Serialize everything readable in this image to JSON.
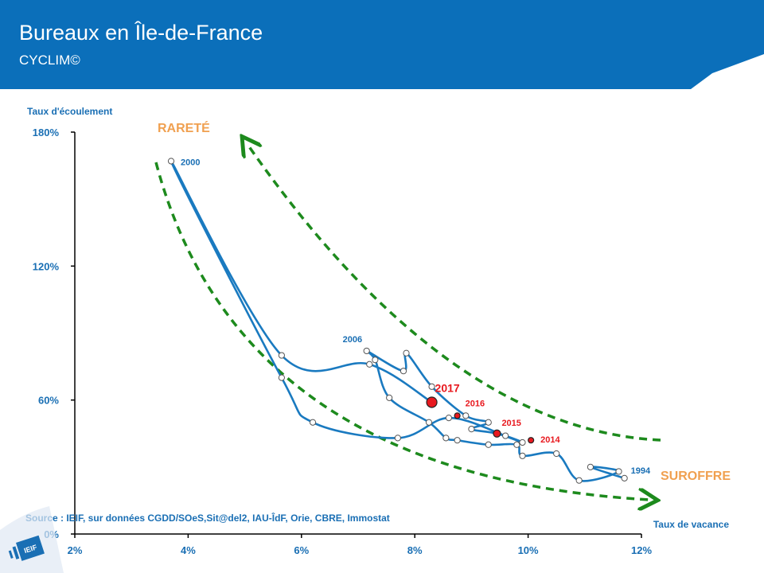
{
  "header": {
    "title": "Bureaux en Île-de-France",
    "subtitle": "CYCLIM©"
  },
  "source": "Source : IEIF, sur données CGDD/SOeS,Sit@del2, IAU-ÎdF, Orie, CBRE, Immostat",
  "logo_text": "IEIF",
  "colors": {
    "banner": "#0b6fba",
    "line": "#1a7ac0",
    "highlight": "#e8191f",
    "arrow": "#1d8a1d",
    "zone": "#f0a050"
  },
  "chart_data": {
    "type": "line",
    "xlabel": "Taux de vacance",
    "ylabel": "Taux d'écoulement",
    "xlim": [
      2,
      12
    ],
    "ylim": [
      0,
      180
    ],
    "x_ticks": [
      2,
      4,
      6,
      8,
      10,
      12
    ],
    "x_tick_labels": [
      "2%",
      "4%",
      "6%",
      "8%",
      "10%",
      "12%"
    ],
    "y_ticks": [
      0,
      60,
      120,
      180
    ],
    "y_tick_labels": [
      "0%",
      "60%",
      "120%",
      "180%"
    ],
    "zones": [
      {
        "label": "RARETÉ"
      },
      {
        "label": "SUROFFRE"
      }
    ],
    "series": [
      {
        "points": [
          [
            11.7,
            25
          ],
          [
            11.1,
            30
          ],
          [
            11.6,
            28
          ],
          [
            10.9,
            24
          ],
          [
            10.5,
            36
          ],
          [
            9.9,
            35
          ],
          [
            9.8,
            40
          ],
          [
            9.3,
            40
          ],
          [
            8.75,
            42
          ],
          [
            8.55,
            43
          ],
          [
            8.25,
            50
          ],
          [
            7.55,
            61
          ],
          [
            7.3,
            78
          ],
          [
            7.15,
            82
          ],
          [
            7.8,
            73
          ],
          [
            7.85,
            81
          ],
          [
            8.3,
            66
          ],
          [
            8.9,
            53
          ],
          [
            9.3,
            50
          ],
          [
            9.0,
            47
          ],
          [
            9.45,
            45
          ],
          [
            9.9,
            41
          ],
          [
            9.6,
            44
          ],
          [
            8.6,
            52
          ],
          [
            7.7,
            43
          ],
          [
            6.2,
            50
          ],
          [
            5.65,
            70
          ],
          [
            3.7,
            167
          ],
          [
            5.65,
            80
          ],
          [
            7.2,
            76
          ],
          [
            8.3,
            59
          ]
        ]
      }
    ],
    "labeled_points": [
      {
        "label": "1994",
        "x": 11.7,
        "y": 25,
        "highlight": false
      },
      {
        "label": "2000",
        "x": 3.7,
        "y": 167,
        "highlight": false
      },
      {
        "label": "2006",
        "x": 7.15,
        "y": 82,
        "highlight": false
      },
      {
        "label": "2014",
        "x": 10.05,
        "y": 42,
        "highlight": true
      },
      {
        "label": "2015",
        "x": 9.45,
        "y": 45,
        "highlight": true
      },
      {
        "label": "2016",
        "x": 8.75,
        "y": 53,
        "highlight": true
      },
      {
        "label": "2017",
        "x": 8.3,
        "y": 59,
        "highlight": true
      }
    ]
  }
}
